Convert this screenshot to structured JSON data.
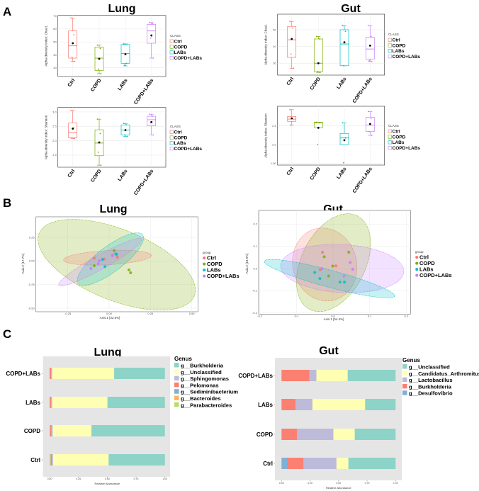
{
  "panel_labels": {
    "a": "A",
    "b": "B",
    "c": "C"
  },
  "titles": {
    "lung": "Lung",
    "gut": "Gut"
  },
  "group_colors": {
    "Ctrl": "#F8766D",
    "COPD": "#7CAE00",
    "LABs": "#00BFC4",
    "COPD+LABs": "#C77CFF"
  },
  "chart_data": [
    {
      "type": "boxplot",
      "panel": "A",
      "title": "Lung",
      "ylabel": "Alpha-diversity Index: Chao1",
      "yticks": [
        30,
        40,
        50,
        60,
        70
      ],
      "ylim": [
        23.3,
        70.5
      ],
      "categories": [
        "Ctrl",
        "COPD",
        "LABs",
        "COPD+LABs"
      ],
      "legend_title": "CLASS",
      "legend": [
        "Ctrl",
        "COPD",
        "LABs",
        "COPD+LABs"
      ],
      "boxes": [
        {
          "min": 35,
          "q1": 37.5,
          "median": 47,
          "q3": 58.5,
          "max": 68.5,
          "mean": 49,
          "points": [
            68.5,
            55.5,
            38,
            35
          ]
        },
        {
          "min": 25.5,
          "q1": 28,
          "median": 37.5,
          "q3": 46,
          "max": 47.5,
          "mean": 37,
          "points": [
            47.5,
            45,
            29,
            25.5
          ]
        },
        {
          "min": 31.5,
          "q1": 33.5,
          "median": 41,
          "q3": 48,
          "max": 48.5,
          "mean": 40.5,
          "points": [
            48.5,
            33.5,
            32
          ]
        },
        {
          "min": 37.5,
          "q1": 49,
          "median": 58.5,
          "q3": 63.5,
          "max": 65,
          "mean": 55,
          "points": [
            65,
            64,
            53,
            37.5
          ]
        }
      ]
    },
    {
      "type": "boxplot",
      "panel": "A",
      "title": "Gut",
      "ylabel": "Alpha-diversity Index: Chao1",
      "yticks": [
        30,
        40,
        50
      ],
      "ylim": [
        22.9,
        59.3
      ],
      "categories": [
        "Ctrl",
        "COPD",
        "LABs",
        "COPD+LABs"
      ],
      "legend_title": "CLASS",
      "legend": [
        "Ctrl",
        "COPD",
        "LABs",
        "COPD+LABs"
      ],
      "boxes": [
        {
          "min": 27,
          "q1": 33.5,
          "median": 44,
          "q3": 52,
          "max": 55,
          "mean": 44.5,
          "points": [
            55,
            51,
            35.5,
            27
          ]
        },
        {
          "min": 24.5,
          "q1": 25,
          "median": 30,
          "q3": 44.5,
          "max": 46,
          "mean": 30,
          "points": [
            46,
            44.5,
            25,
            24.5
          ]
        },
        {
          "min": 28.5,
          "q1": 28.5,
          "median": 41.5,
          "q3": 50,
          "max": 52.5,
          "mean": 42.5,
          "points": [
            52.5,
            49,
            28.5
          ]
        },
        {
          "min": 31,
          "q1": 32.5,
          "median": 38.5,
          "q3": 45.5,
          "max": 52.5,
          "mean": 40.5,
          "points": [
            52.5,
            46,
            31.5,
            31
          ]
        }
      ]
    },
    {
      "type": "boxplot",
      "panel": "A",
      "title": "Lung",
      "ylabel": "Alpha-diversity Index: Shannon",
      "yticks": [
        1.5,
        2.0,
        2.5,
        3.0
      ],
      "ytick_labels": [
        "1.5",
        "2.0",
        "2.5",
        "3.0"
      ],
      "ylim": [
        1.08,
        3.155
      ],
      "categories": [
        "Ctrl",
        "COPD",
        "LABs",
        "COPD+LABs"
      ],
      "legend_title": "CLASS",
      "legend": [
        "Ctrl",
        "COPD",
        "LABs",
        "COPD+LABs"
      ],
      "boxes": [
        {
          "min": 2.08,
          "q1": 2.1,
          "median": 2.28,
          "q3": 2.62,
          "max": 3.05,
          "mean": 2.42,
          "points": [
            3.05,
            2.45,
            2.1,
            2.08
          ]
        },
        {
          "min": 1.15,
          "q1": 1.48,
          "median": 1.92,
          "q3": 2.38,
          "max": 2.75,
          "mean": 1.94,
          "points": [
            2.75,
            2.25,
            1.6,
            1.15
          ]
        },
        {
          "min": 2.15,
          "q1": 2.2,
          "median": 2.37,
          "q3": 2.55,
          "max": 2.6,
          "mean": 2.37,
          "points": [
            2.6,
            2.55,
            2.2,
            2.15
          ]
        },
        {
          "min": 2.2,
          "q1": 2.52,
          "median": 2.73,
          "q3": 2.85,
          "max": 2.92,
          "mean": 2.65,
          "points": [
            2.92,
            2.85,
            2.62,
            2.2
          ]
        }
      ]
    },
    {
      "type": "boxplot",
      "panel": "A",
      "title": "Gut",
      "ylabel": "Alpha-diversity Index: Shannon",
      "yticks": [
        1.5,
        2.0,
        2.5
      ],
      "ytick_labels": [
        "1.50",
        "2.0",
        "2.5"
      ],
      "ylim": [
        1.46,
        3.02
      ],
      "categories": [
        "Ctrl",
        "COPD",
        "LABs",
        "COPD+LABs"
      ],
      "legend_title": "CLASS",
      "legend": [
        "Ctrl",
        "COPD",
        "LABs",
        "COPD+LABs"
      ],
      "boxes": [
        {
          "min": 2.52,
          "q1": 2.62,
          "median": 2.68,
          "q3": 2.75,
          "max": 2.93,
          "mean": 2.7,
          "points": [
            2.93,
            2.68,
            2.52
          ]
        },
        {
          "min": 2.45,
          "q1": 2.45,
          "median": 2.58,
          "q3": 2.6,
          "max": 2.6,
          "mean": 2.45,
          "points": [
            2.6,
            2.58,
            2.0
          ]
        },
        {
          "min": 2.0,
          "q1": 2.0,
          "median": 2.18,
          "q3": 2.3,
          "max": 2.58,
          "mean": 2.12,
          "points": [
            2.58,
            2.18,
            1.52
          ]
        },
        {
          "min": 2.25,
          "q1": 2.35,
          "median": 2.52,
          "q3": 2.73,
          "max": 2.88,
          "mean": 2.55,
          "points": [
            2.88,
            2.7,
            2.35,
            2.25
          ]
        }
      ]
    },
    {
      "type": "scatter",
      "panel": "B",
      "title": "Lung",
      "xlabel": "Axis.1  [32.5%]",
      "ylabel": "Axis.2  [17.7%]",
      "xticks": [
        -0.25,
        0,
        0.25,
        0.5
      ],
      "xtick_labels": [
        "-0.25",
        "0.00",
        "0.25",
        "0.50"
      ],
      "yticks": [
        0.25,
        0,
        -0.25,
        -0.5
      ],
      "ytick_labels": [
        "0.25",
        "0.00",
        "-0.25",
        "-0.50"
      ],
      "legend_title": "group",
      "legend": [
        "Ctrl",
        "COPD",
        "LABs",
        "COPD+LABs"
      ],
      "series": [
        {
          "name": "Ctrl",
          "points": [
            [
              -0.09,
              0.03
            ],
            [
              -0.03,
              0.02
            ],
            [
              0.02,
              0.06
            ],
            [
              0.05,
              0.04
            ]
          ]
        },
        {
          "name": "COPD",
          "points": [
            [
              0.03,
              0.11
            ],
            [
              -0.09,
              -0.05
            ],
            [
              0.12,
              -0.095
            ],
            [
              0.13,
              -0.125
            ]
          ]
        },
        {
          "name": "LABs",
          "points": [
            [
              0.04,
              0.075
            ],
            [
              -0.04,
              0.015
            ],
            [
              -0.025,
              -0.06
            ],
            [
              0.045,
              0.07
            ]
          ]
        },
        {
          "name": "COPD+LABs",
          "points": [
            [
              -0.06,
              0.0
            ],
            [
              -0.065,
              -0.03
            ],
            [
              -0.11,
              -0.08
            ],
            [
              0.02,
              0.055
            ]
          ]
        }
      ]
    },
    {
      "type": "scatter",
      "panel": "B",
      "title": "Gut",
      "xlabel": "Axis.1  [54.4%]",
      "ylabel": "Axis.2  [18.9%]",
      "xticks": [
        -0.2,
        -0.1,
        0,
        0.1,
        0.2
      ],
      "xtick_labels": [
        "-0.2",
        "-0.1",
        "0.0",
        "0.1",
        "0.2"
      ],
      "yticks": [
        0.2,
        0.1,
        0,
        -0.1,
        -0.2
      ],
      "ytick_labels": [
        "0.2",
        "0.1",
        "0.0",
        "-0.1",
        "-0.2"
      ],
      "legend_title": "group",
      "legend": [
        "Ctrl",
        "COPD",
        "LABs",
        "COPD+LABs"
      ],
      "series": [
        {
          "name": "Ctrl",
          "points": [
            [
              -0.029,
              0.073
            ],
            [
              0.008,
              0.012
            ],
            [
              -0.035,
              -0.006
            ]
          ]
        },
        {
          "name": "COPD",
          "points": [
            [
              -0.024,
              0.053
            ],
            [
              0.043,
              0.074
            ],
            [
              -0.001,
              0.011
            ],
            [
              -0.012,
              -0.034
            ]
          ]
        },
        {
          "name": "LABs",
          "points": [
            [
              -0.05,
              -0.018
            ],
            [
              -0.036,
              -0.045
            ],
            [
              0.019,
              -0.061
            ],
            [
              0.031,
              -0.061
            ]
          ]
        },
        {
          "name": "COPD+LABs",
          "points": [
            [
              -0.03,
              0.0
            ],
            [
              0.047,
              0.027
            ],
            [
              0.054,
              -0.003
            ],
            [
              0.03,
              -0.034
            ]
          ]
        }
      ]
    },
    {
      "type": "bar",
      "stacked": true,
      "horizontal": true,
      "panel": "C",
      "title": "Lung",
      "xlabel": "Relative Abundance",
      "xticks": [
        "0.00",
        "0.25",
        "0.50",
        "0.75",
        "1.00"
      ],
      "categories": [
        "COPD+LABs",
        "LABs",
        "COPD",
        "Ctrl"
      ],
      "legend_title": "Genus",
      "legend": [
        "g__Burkholderia",
        "g__Unclassified",
        "g__Sphingomonas",
        "g__Pelomonas",
        "g__Sediminibacterium",
        "g__Bacteroides",
        "g__Parabacteroides"
      ],
      "series": [
        {
          "name": "g__Parabacteroides",
          "color": "#B3DE69",
          "values": [
            0,
            0,
            0.003,
            0.005
          ]
        },
        {
          "name": "g__Bacteroides",
          "color": "#FDB462",
          "values": [
            0,
            0,
            0,
            0.005
          ]
        },
        {
          "name": "g__Sediminibacterium",
          "color": "#80B1D3",
          "values": [
            0.003,
            0.002,
            0.002,
            0.002
          ]
        },
        {
          "name": "g__Pelomonas",
          "color": "#FB8072",
          "values": [
            0.01,
            0.01,
            0.012,
            0.008
          ]
        },
        {
          "name": "g__Sphingomonas",
          "color": "#BEBADA",
          "values": [
            0.01,
            0.011,
            0.01,
            0.01
          ]
        },
        {
          "name": "g__Unclassified",
          "color": "#FFFFB3",
          "values": [
            0.537,
            0.479,
            0.336,
            0.482
          ]
        },
        {
          "name": "g__Burkholderia",
          "color": "#8DD3C7",
          "values": [
            0.44,
            0.498,
            0.637,
            0.488
          ]
        }
      ]
    },
    {
      "type": "bar",
      "stacked": true,
      "horizontal": true,
      "panel": "C",
      "title": "Gut",
      "xlabel": "Relative Abundance",
      "xticks": [
        "0.00",
        "0.25",
        "0.50",
        "0.75",
        "1.00"
      ],
      "categories": [
        "COPD+LABs",
        "LABs",
        "COPD",
        "Ctrl"
      ],
      "legend_title": "Genus",
      "legend": [
        "g__Unclassified",
        "g__Candidatus_Arthromitus",
        "g__Lactobacillus",
        "g__Burkholderia",
        "g__Desulfovibrio"
      ],
      "series": [
        {
          "name": "g__Desulfovibrio",
          "color": "#80B1D3",
          "values": [
            0,
            0,
            0,
            0.048
          ]
        },
        {
          "name": "g__Burkholderia",
          "color": "#FB8072",
          "values": [
            0.244,
            0.124,
            0.137,
            0.145
          ]
        },
        {
          "name": "g__Lactobacillus",
          "color": "#BEBADA",
          "values": [
            0.062,
            0.147,
            0.318,
            0.289
          ]
        },
        {
          "name": "g__Candidatus_Arthromitus",
          "color": "#FFFFB3",
          "values": [
            0.274,
            0.462,
            0.187,
            0.104
          ]
        },
        {
          "name": "g__Unclassified",
          "color": "#8DD3C7",
          "values": [
            0.42,
            0.267,
            0.358,
            0.414
          ]
        }
      ]
    }
  ]
}
